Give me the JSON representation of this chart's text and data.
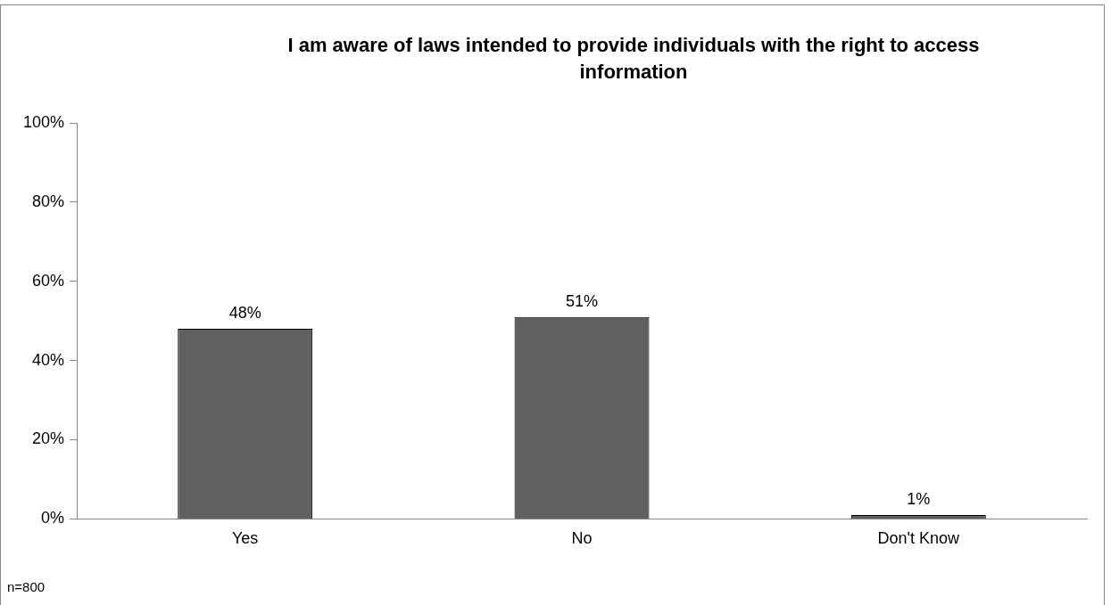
{
  "chart_data": {
    "type": "bar",
    "title": "I am aware of laws intended to provide individuals with the right to access information",
    "categories": [
      "Yes",
      "No",
      "Don't Know"
    ],
    "values": [
      48,
      51,
      1
    ],
    "value_labels": [
      "48%",
      "51%",
      "1%"
    ],
    "color": "#606060",
    "ylim": [
      0,
      100
    ],
    "yticks": [
      {
        "value": 0,
        "label": "0%"
      },
      {
        "value": 20,
        "label": "20%"
      },
      {
        "value": 40,
        "label": "40%"
      },
      {
        "value": 60,
        "label": "60%"
      },
      {
        "value": 80,
        "label": "80%"
      },
      {
        "value": 100,
        "label": "100%"
      }
    ],
    "grid": false,
    "legend": false,
    "annotations": [
      "n=800"
    ]
  }
}
